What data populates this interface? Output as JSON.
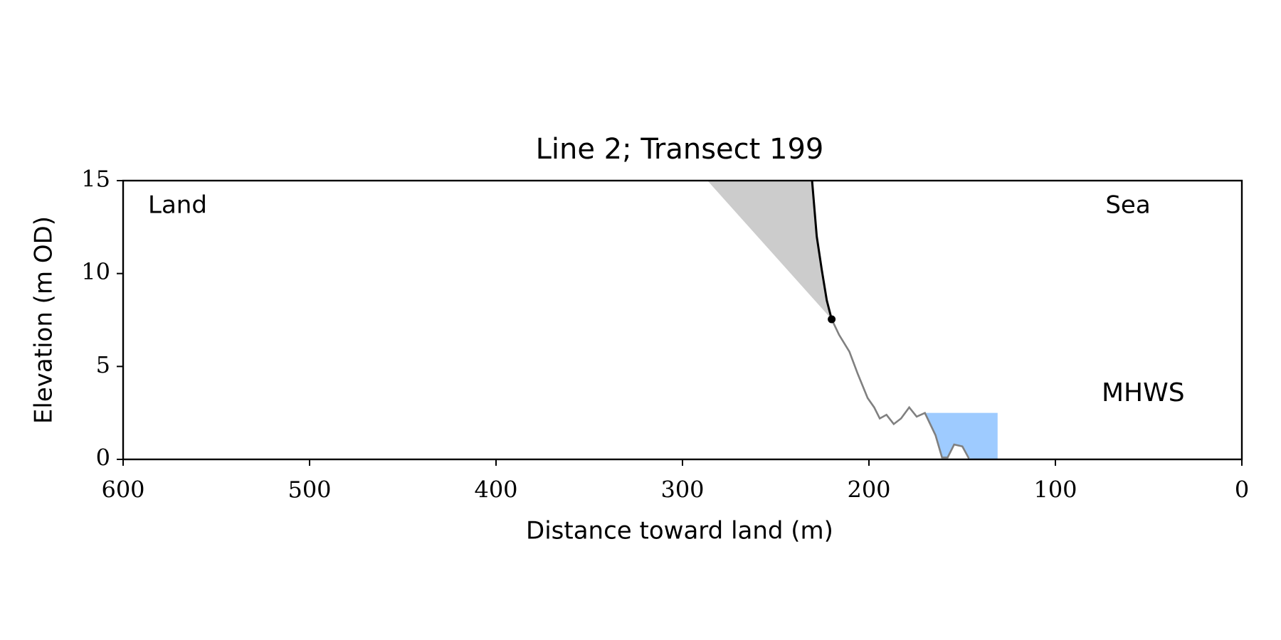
{
  "chart_data": {
    "type": "line",
    "title": "Line 2; Transect 199",
    "x_label": "Distance toward land (m)",
    "y_label": "Elevation (m OD)",
    "xlim": [
      600,
      0
    ],
    "ylim": [
      0,
      15
    ],
    "xticks": [
      600,
      500,
      400,
      300,
      200,
      100,
      0
    ],
    "yticks": [
      0,
      5,
      10,
      15
    ],
    "annotations": {
      "land": "Land",
      "sea": "Sea",
      "mhws": "MHWS"
    },
    "mhws_color": "#6699cc",
    "profile": {
      "color": "#808080",
      "x": [
        220,
        216,
        210.5,
        206,
        200.7,
        197.2,
        194.2,
        190.6,
        186.7,
        182.8,
        178.4,
        174.4,
        170,
        164.3,
        160.8,
        157.8,
        154.3,
        149.9,
        146.4
      ],
      "y": [
        7.54,
        6.7,
        5.8,
        4.6,
        3.3,
        2.8,
        2.2,
        2.4,
        1.9,
        2.2,
        2.8,
        2.3,
        2.5,
        1.3,
        0.1,
        0.1,
        0.8,
        0.7,
        0.05
      ]
    },
    "cliff": {
      "color": "#000000",
      "x": [
        230.5,
        228,
        225.3,
        222.6,
        220
      ],
      "y": [
        15,
        12,
        10.2,
        8.55,
        7.54
      ]
    },
    "cliff_toe": {
      "x": 220,
      "y": 7.54,
      "color": "#000000"
    },
    "setback_area": {
      "color": "#cccccc",
      "x": [
        286.6,
        230.5,
        228,
        225.3,
        222.6,
        220
      ],
      "y": [
        15,
        15,
        12,
        10.2,
        8.55,
        7.54
      ]
    },
    "mhws_area": {
      "color": "#9ecbff",
      "x": [
        171.5,
        131,
        131,
        146.4,
        149.9,
        154.3,
        157.8,
        160.8,
        164.3,
        170
      ],
      "y": [
        2.5,
        2.5,
        0,
        0.05,
        0.7,
        0.8,
        0.1,
        0.1,
        1.3,
        2.5
      ]
    }
  }
}
